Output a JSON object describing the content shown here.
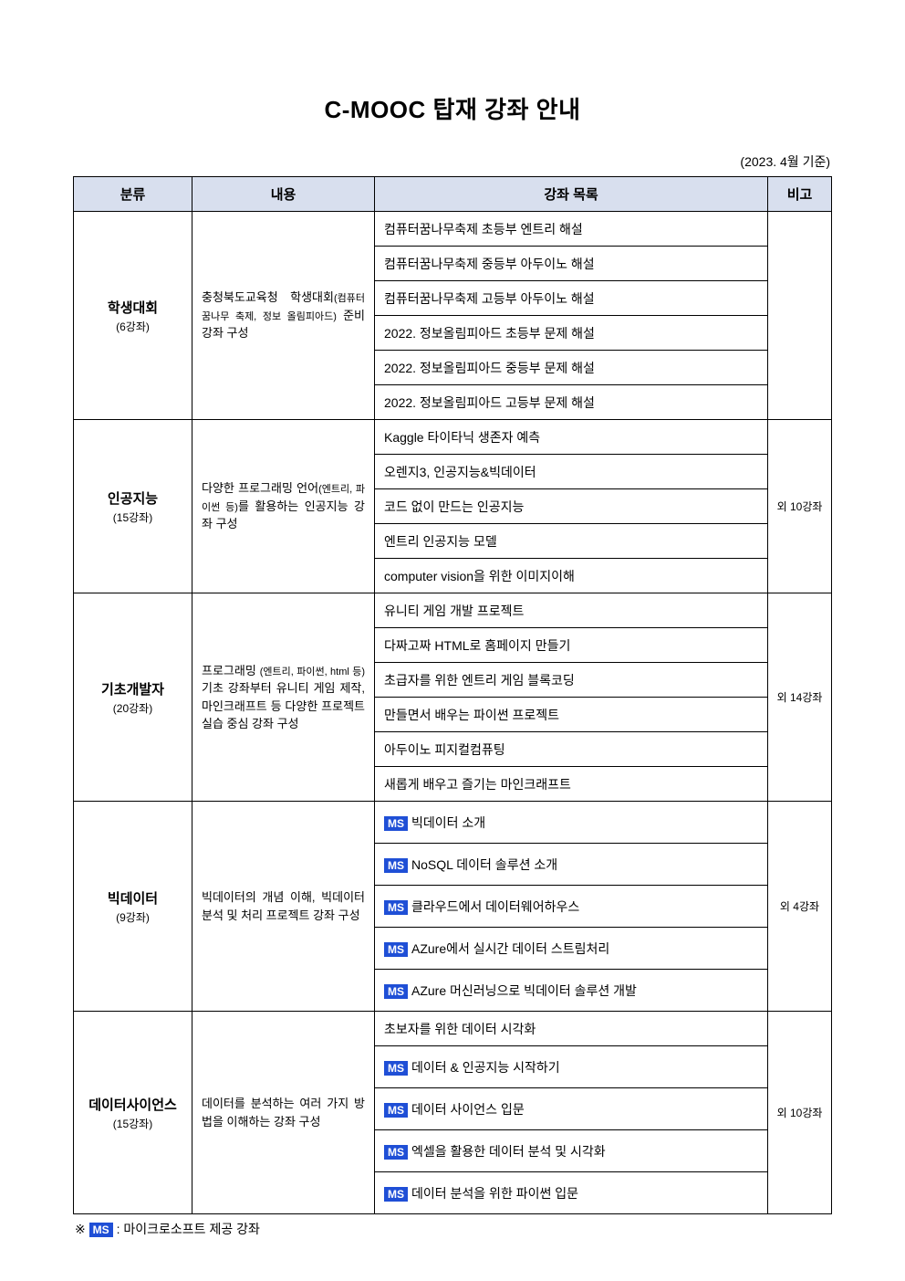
{
  "title": "C-MOOC 탑재 강좌 안내",
  "date_note": "(2023. 4월 기준)",
  "headers": {
    "category": "분류",
    "description": "내용",
    "courses": "강좌 목록",
    "note": "비고"
  },
  "ms_badge": "MS",
  "footnote_prefix": "※ ",
  "footnote_text": ": 마이크로소프트 제공 강좌",
  "colors": {
    "header_bg": "#d8dfee",
    "ms_badge_bg": "#1f4fd6",
    "ms_badge_text": "#ffffff",
    "border": "#000000",
    "background": "#ffffff",
    "text": "#000000"
  },
  "sections": [
    {
      "cat_name": "학생대회",
      "cat_count": "(6강좌)",
      "desc_main": "충청북도교육청 학생대회",
      "desc_sub": "(컴퓨터 꿈나무 축제, 정보 올림피아드)",
      "desc_tail": " 준비 강좌 구성",
      "note": "",
      "courses": [
        {
          "ms": false,
          "text": "컴퓨터꿈나무축제 초등부 엔트리 해설"
        },
        {
          "ms": false,
          "text": "컴퓨터꿈나무축제 중등부 아두이노 해설"
        },
        {
          "ms": false,
          "text": "컴퓨터꿈나무축제 고등부 아두이노 해설"
        },
        {
          "ms": false,
          "text": "2022. 정보올림피아드 초등부 문제 해설"
        },
        {
          "ms": false,
          "text": "2022. 정보올림피아드 중등부 문제 해설"
        },
        {
          "ms": false,
          "text": "2022. 정보올림피아드 고등부 문제 해설"
        }
      ]
    },
    {
      "cat_name": "인공지능",
      "cat_count": "(15강좌)",
      "desc_main": "다양한 프로그래밍 언어",
      "desc_sub": "(엔트리, 파이썬 등)",
      "desc_tail": "를 활용하는 인공지능 강좌 구성",
      "note": "외 10강좌",
      "courses": [
        {
          "ms": false,
          "text": "Kaggle 타이타닉 생존자 예측"
        },
        {
          "ms": false,
          "text": "오렌지3, 인공지능&빅데이터"
        },
        {
          "ms": false,
          "text": "코드 없이 만드는 인공지능"
        },
        {
          "ms": false,
          "text": "엔트리 인공지능 모델"
        },
        {
          "ms": false,
          "text": "computer vision을 위한 이미지이해"
        }
      ]
    },
    {
      "cat_name": "기초개발자",
      "cat_count": "(20강좌)",
      "desc_main": "프로그래밍 ",
      "desc_sub": "(엔트리, 파이썬, html 등)",
      "desc_tail": " 기초 강좌부터 유니티 게임 제작, 마인크래프트 등 다양한 프로젝트 실습 중심 강좌 구성",
      "note": "외 14강좌",
      "courses": [
        {
          "ms": false,
          "text": "유니티 게임 개발 프로젝트"
        },
        {
          "ms": false,
          "text": "다짜고짜 HTML로 홈페이지 만들기"
        },
        {
          "ms": false,
          "text": "초급자를 위한 엔트리 게임 블록코딩"
        },
        {
          "ms": false,
          "text": "만들면서 배우는 파이썬 프로젝트"
        },
        {
          "ms": false,
          "text": "아두이노 피지컬컴퓨팅"
        },
        {
          "ms": false,
          "text": "새롭게 배우고 즐기는 마인크래프트"
        }
      ]
    },
    {
      "cat_name": "빅데이터",
      "cat_count": "(9강좌)",
      "desc_main": "빅데이터의 개념 이해, 빅데이터 분석 및 처리 프로젝트 강좌 구성",
      "desc_sub": "",
      "desc_tail": "",
      "note": "외 4강좌",
      "courses": [
        {
          "ms": true,
          "text": "빅데이터 소개"
        },
        {
          "ms": true,
          "text": "NoSQL 데이터 솔루션 소개"
        },
        {
          "ms": true,
          "text": "클라우드에서 데이터웨어하우스"
        },
        {
          "ms": true,
          "text": "AZure에서 실시간 데이터 스트림처리"
        },
        {
          "ms": true,
          "text": "AZure 머신러닝으로 빅데이터 솔루션 개발"
        }
      ]
    },
    {
      "cat_name": "데이터사이언스",
      "cat_count": "(15강좌)",
      "desc_main": "데이터를 분석하는 여러 가지 방법을 이해하는  강좌 구성",
      "desc_sub": "",
      "desc_tail": "",
      "note": "외 10강좌",
      "courses": [
        {
          "ms": false,
          "text": "초보자를 위한 데이터 시각화"
        },
        {
          "ms": true,
          "text": "데이터 & 인공지능 시작하기"
        },
        {
          "ms": true,
          "text": "데이터 사이언스 입문"
        },
        {
          "ms": true,
          "text": "엑셀을 활용한 데이터 분석 및 시각화"
        },
        {
          "ms": true,
          "text": "데이터 분석을 위한 파이썬 입문"
        }
      ]
    }
  ]
}
